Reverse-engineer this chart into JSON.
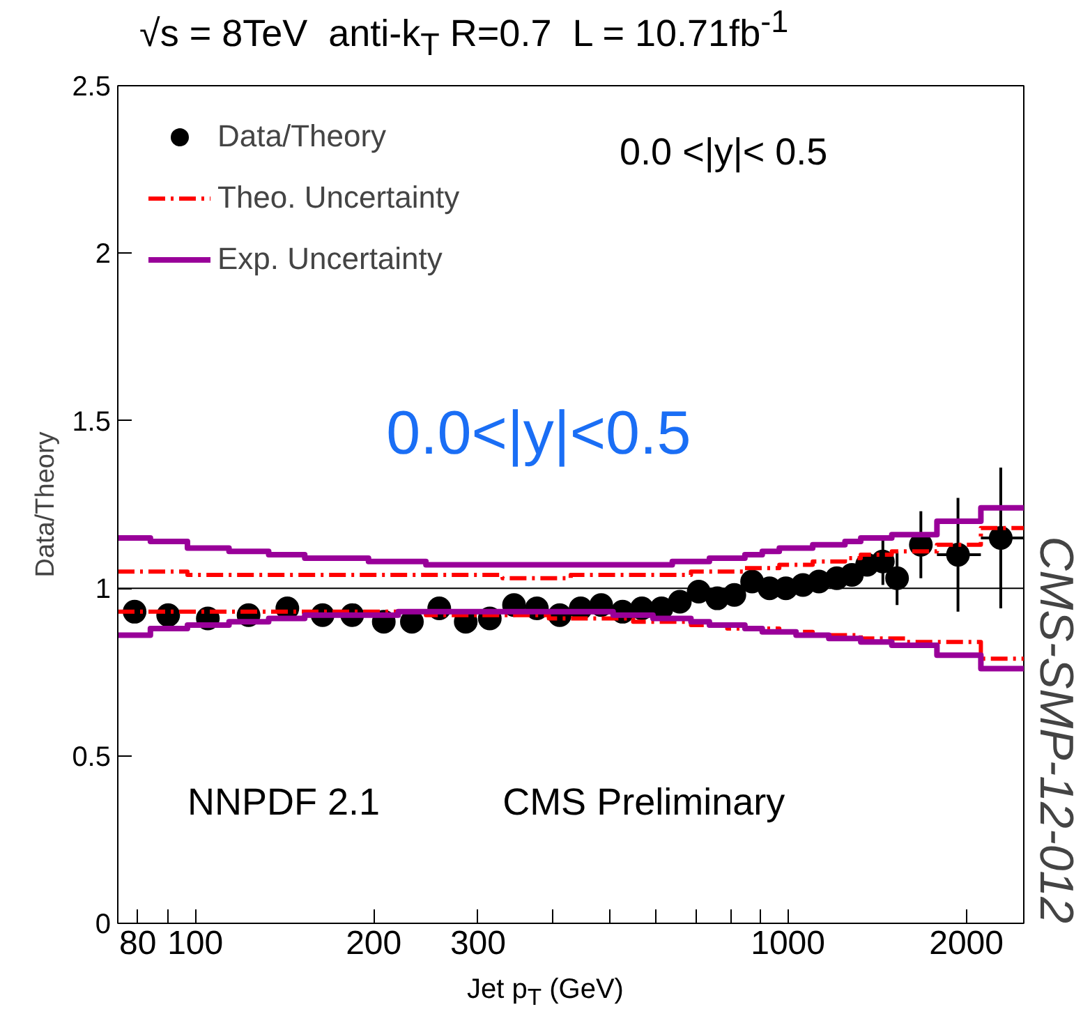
{
  "chart_data": {
    "type": "scatter",
    "title": "√s = 8TeV   anti-k$_{T}$ R=0.7  L = 10.71fb$^{-1}$",
    "xlabel": "Jet p$_{T}$ (GeV)",
    "ylabel": "Data/Theory",
    "log": "x",
    "xlim": [
      74,
      2500
    ],
    "ylim": [
      0,
      2.5
    ],
    "xticks": [
      80,
      {
        "value": 90,
        "label": null
      },
      100,
      200,
      300,
      {
        "value": 400,
        "label": null
      },
      {
        "value": 500,
        "label": null
      },
      {
        "value": 600,
        "label": null
      },
      {
        "value": 700,
        "label": null
      },
      {
        "value": 800,
        "label": null
      },
      {
        "value": 900,
        "label": null
      },
      1000,
      2000
    ],
    "yticks": [
      0,
      0.5,
      1,
      1.5,
      2,
      2.5
    ],
    "grid": false,
    "legend": "top left",
    "ref_lines": [
      {
        "axis": "y",
        "value": 1,
        "color": "#000000"
      }
    ],
    "annotations": [
      "0.0 <|y|< 0.5",
      "0.0<|y|<0.5",
      "NNPDF 2.1",
      "CMS Preliminary",
      "CMS-SMP-12-012"
    ],
    "series": [
      {
        "name": "Data/Theory",
        "marker": "circle",
        "color": "#000000",
        "x": [
          79,
          90,
          105,
          123,
          143,
          164,
          184,
          208,
          232,
          258,
          286,
          314,
          345,
          377,
          412,
          447,
          484,
          526,
          567,
          612,
          657,
          707,
          760,
          812,
          870,
          931,
          992,
          1060,
          1128,
          1209,
          1282,
          1360,
          1446,
          1528,
          1676,
          1936,
          2286
        ],
        "values": [
          0.93,
          0.92,
          0.91,
          0.92,
          0.94,
          0.92,
          0.92,
          0.9,
          0.9,
          0.94,
          0.9,
          0.91,
          0.95,
          0.94,
          0.92,
          0.94,
          0.95,
          0.93,
          0.94,
          0.94,
          0.96,
          0.99,
          0.97,
          0.98,
          1.02,
          1.0,
          1.0,
          1.01,
          1.02,
          1.03,
          1.04,
          1.07,
          1.08,
          1.03,
          1.13,
          1.1,
          1.15
        ],
        "errors": [
          null,
          null,
          null,
          null,
          null,
          null,
          null,
          null,
          null,
          null,
          null,
          null,
          null,
          null,
          null,
          null,
          null,
          null,
          null,
          null,
          null,
          null,
          null,
          null,
          null,
          null,
          null,
          null,
          null,
          0.02,
          0.02,
          0.03,
          0.07,
          0.08,
          0.1,
          0.17,
          0.21
        ],
        "xerrors": [
          null,
          null,
          null,
          null,
          null,
          null,
          null,
          null,
          null,
          null,
          null,
          null,
          null,
          null,
          null,
          null,
          null,
          null,
          null,
          null,
          null,
          null,
          null,
          null,
          null,
          null,
          null,
          null,
          null,
          null,
          null,
          null,
          null,
          null,
          null,
          [
            1784,
            2116
          ],
          [
            2116,
            2500
          ]
        ]
      },
      {
        "name": "Theo. Uncertainty",
        "type": "step",
        "line_style": "dashdot",
        "color": "#ff0000",
        "x": [
          74,
          84,
          97,
          114,
          133,
          153,
          174,
          196,
          220,
          245,
          272,
          300,
          330,
          362,
          395,
          430,
          468,
          507,
          548,
          592,
          638,
          686,
          737,
          790,
          846,
          905,
          967,
          1032,
          1101,
          1172,
          1248,
          1327,
          1410,
          1497,
          1588,
          1784,
          2116,
          2500
        ],
        "values": [
          1.05,
          1.05,
          1.04,
          1.04,
          1.04,
          1.04,
          1.04,
          1.04,
          1.04,
          1.04,
          1.04,
          1.04,
          1.03,
          1.03,
          1.03,
          1.04,
          1.04,
          1.04,
          1.04,
          1.04,
          1.04,
          1.05,
          1.05,
          1.05,
          1.06,
          1.06,
          1.07,
          1.07,
          1.08,
          1.08,
          1.09,
          1.1,
          1.1,
          1.11,
          1.11,
          1.13,
          1.18,
          1.18
        ]
      },
      {
        "type": "step",
        "line_style": "dashdot",
        "color": "#ff0000",
        "x": [
          74,
          84,
          97,
          114,
          133,
          153,
          174,
          196,
          220,
          245,
          272,
          300,
          330,
          362,
          395,
          430,
          468,
          507,
          548,
          592,
          638,
          686,
          737,
          790,
          846,
          905,
          967,
          1032,
          1101,
          1172,
          1248,
          1327,
          1410,
          1497,
          1588,
          1784,
          2116,
          2500
        ],
        "values": [
          0.93,
          0.93,
          0.93,
          0.93,
          0.93,
          0.93,
          0.93,
          0.93,
          0.93,
          0.92,
          0.92,
          0.92,
          0.92,
          0.92,
          0.91,
          0.91,
          0.91,
          0.91,
          0.9,
          0.9,
          0.9,
          0.89,
          0.89,
          0.88,
          0.88,
          0.88,
          0.87,
          0.87,
          0.86,
          0.86,
          0.86,
          0.85,
          0.85,
          0.85,
          0.84,
          0.84,
          0.79,
          0.79
        ]
      },
      {
        "name": "Exp. Uncertainty",
        "type": "step",
        "line_style": "solid",
        "color": "#990099",
        "x": [
          74,
          84,
          97,
          114,
          133,
          153,
          174,
          196,
          220,
          245,
          272,
          300,
          330,
          362,
          395,
          430,
          468,
          507,
          548,
          592,
          638,
          686,
          737,
          790,
          846,
          905,
          967,
          1032,
          1101,
          1172,
          1248,
          1327,
          1410,
          1497,
          1588,
          1784,
          2116,
          2500
        ],
        "values": [
          1.15,
          1.14,
          1.12,
          1.11,
          1.1,
          1.09,
          1.09,
          1.08,
          1.08,
          1.07,
          1.07,
          1.07,
          1.07,
          1.07,
          1.07,
          1.07,
          1.07,
          1.07,
          1.07,
          1.07,
          1.08,
          1.08,
          1.09,
          1.09,
          1.1,
          1.11,
          1.12,
          1.12,
          1.13,
          1.13,
          1.14,
          1.15,
          1.15,
          1.16,
          1.16,
          1.2,
          1.24,
          1.24
        ]
      },
      {
        "type": "step",
        "line_style": "solid",
        "color": "#990099",
        "x": [
          74,
          84,
          97,
          114,
          133,
          153,
          174,
          196,
          220,
          245,
          272,
          300,
          330,
          362,
          395,
          430,
          468,
          507,
          548,
          592,
          638,
          686,
          737,
          790,
          846,
          905,
          967,
          1032,
          1101,
          1172,
          1248,
          1327,
          1410,
          1497,
          1588,
          1784,
          2116,
          2500
        ],
        "values": [
          0.86,
          0.88,
          0.89,
          0.9,
          0.91,
          0.92,
          0.92,
          0.92,
          0.93,
          0.93,
          0.93,
          0.93,
          0.93,
          0.93,
          0.93,
          0.93,
          0.93,
          0.92,
          0.92,
          0.91,
          0.91,
          0.9,
          0.89,
          0.89,
          0.88,
          0.87,
          0.87,
          0.86,
          0.86,
          0.85,
          0.85,
          0.84,
          0.84,
          0.83,
          0.83,
          0.8,
          0.76,
          0.76
        ]
      }
    ]
  }
}
